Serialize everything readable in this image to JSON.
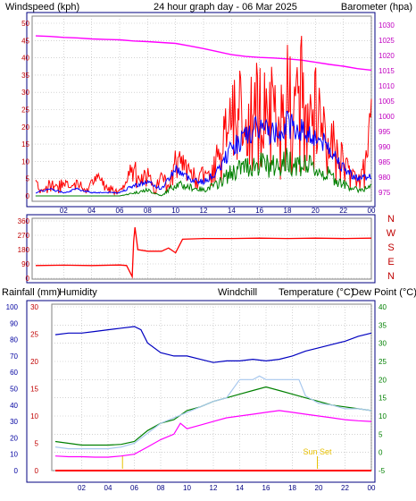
{
  "colors": {
    "wind_speed": "#ff0000",
    "wind_gust": "#ff0000",
    "wind_avg": "#0000ff",
    "wind_lull": "#008000",
    "barometer": "#ff00ff",
    "direction": "#ff0000",
    "rainfall": "#ff0000",
    "humidity": "#0000c0",
    "windchill": "#a8c8ee",
    "temperature": "#008000",
    "dewpoint": "#ff00ff",
    "daylight_marker": "#e8c000",
    "frame_outer": "#000080",
    "frame_inner": "#808080",
    "grid": "#b8b8b8"
  },
  "chart_data": [
    {
      "type": "line",
      "title": "24 hour graph day - 06 Mar 2025",
      "ylabel_left": "Windspeed (kph)",
      "ylabel_right": "Barometer (hpa)",
      "x_ticks": [
        "02",
        "04",
        "06",
        "08",
        "10",
        "12",
        "14",
        "16",
        "18",
        "20",
        "22",
        "00"
      ],
      "xlim": [
        0,
        24
      ],
      "ylim_left": [
        0,
        50
      ],
      "y_ticks_left": [
        "0",
        "5",
        "10",
        "15",
        "20",
        "25",
        "30",
        "35",
        "40",
        "45",
        "50"
      ],
      "ylim_right": [
        972,
        1033
      ],
      "y_ticks_right": [
        "975",
        "980",
        "985",
        "990",
        "995",
        "1000",
        "1005",
        "1010",
        "1015",
        "1020",
        "1025",
        "1030"
      ],
      "grid": true,
      "series": [
        {
          "key": "barometer",
          "axis": "right",
          "x": [
            0,
            1,
            2,
            3,
            4,
            5,
            6,
            7,
            8,
            9,
            10,
            11,
            12,
            13,
            14,
            15,
            16,
            17,
            18,
            19,
            20,
            21,
            22,
            23,
            24
          ],
          "y": [
            1026.5,
            1026.3,
            1026,
            1025.8,
            1025.5,
            1025.3,
            1025.2,
            1024.8,
            1024.6,
            1024.3,
            1024,
            1023.2,
            1022.3,
            1021.3,
            1020.3,
            1019.7,
            1019.4,
            1019.2,
            1018.9,
            1018.5,
            1017.8,
            1017.1,
            1016.5,
            1015.7,
            1015.2
          ]
        },
        {
          "key": "wind_gust",
          "axis": "left",
          "x": [
            0,
            0.5,
            1,
            1.5,
            2,
            2.5,
            3,
            3.5,
            4,
            4.5,
            5,
            5.5,
            6,
            6.5,
            7,
            7.5,
            8,
            8.5,
            9,
            9.5,
            10,
            10.5,
            11,
            11.5,
            12,
            12.5,
            13,
            13.5,
            14,
            14.5,
            15,
            15.5,
            16,
            16.5,
            17,
            17.5,
            18,
            18.5,
            19,
            19.5,
            20,
            20.5,
            21,
            21.5,
            22,
            22.5,
            23,
            23.5,
            24
          ],
          "y": [
            6,
            2,
            5,
            4,
            7,
            3,
            6,
            2,
            5,
            7,
            4,
            3,
            2,
            5,
            14,
            6,
            9,
            3,
            8,
            4,
            16,
            13,
            9,
            8,
            10,
            7,
            17,
            24,
            33,
            38,
            30,
            36,
            42,
            34,
            39,
            31,
            44,
            36,
            47,
            30,
            38,
            26,
            28,
            20,
            14,
            9,
            7,
            12,
            30
          ]
        },
        {
          "key": "wind_avg",
          "axis": "left",
          "x": [
            0,
            1,
            2,
            3,
            4,
            5,
            6,
            7,
            8,
            9,
            10,
            11,
            12,
            13,
            14,
            15,
            16,
            17,
            18,
            19,
            20,
            21,
            22,
            23,
            24
          ],
          "y": [
            1,
            2,
            1,
            2,
            1,
            1,
            1,
            3,
            4,
            2,
            8,
            5,
            4,
            7,
            14,
            17,
            20,
            18,
            21,
            19,
            17,
            14,
            8,
            5,
            6
          ]
        },
        {
          "key": "wind_lull",
          "axis": "left",
          "x": [
            0,
            1,
            2,
            3,
            4,
            5,
            6,
            7,
            8,
            9,
            10,
            11,
            12,
            13,
            14,
            15,
            16,
            17,
            18,
            19,
            20,
            21,
            22,
            23,
            24
          ],
          "y": [
            0,
            0,
            0,
            0,
            0,
            0,
            0,
            1,
            2,
            0,
            4,
            3,
            2,
            4,
            8,
            10,
            11,
            10,
            12,
            11,
            9,
            7,
            4,
            2,
            3
          ]
        }
      ]
    },
    {
      "type": "line",
      "ylabels": [
        "N",
        "W",
        "S",
        "E",
        "N"
      ],
      "y_ticks": [
        "0",
        "90",
        "180",
        "270",
        "360"
      ],
      "ylim": [
        0,
        360
      ],
      "xlim": [
        0,
        24
      ],
      "series": [
        {
          "key": "direction",
          "x": [
            0,
            2,
            4,
            6,
            6.5,
            6.9,
            7.0,
            7.1,
            7.3,
            8,
            9,
            9.5,
            10,
            10.5,
            12,
            14,
            16,
            18,
            20,
            22,
            24
          ],
          "y": [
            80,
            82,
            80,
            83,
            80,
            10,
            230,
            320,
            180,
            170,
            170,
            190,
            160,
            245,
            250,
            250,
            252,
            250,
            252,
            250,
            252
          ]
        }
      ]
    },
    {
      "type": "line",
      "ylabel_rain": "Rainfall (mm)",
      "ylabel_humidity": "Humidity",
      "ylabel_windchill": "Windchill",
      "ylabel_temperature": "Temperature (°C)",
      "ylabel_dewpoint": "Dew Point (°C)",
      "annotation": "Sun Set",
      "sunrise_hour": 5.1,
      "sunset_hour": 19.9,
      "xlim": [
        0,
        24
      ],
      "humidity_ticks": [
        "0",
        "10",
        "20",
        "30",
        "40",
        "50",
        "60",
        "70",
        "80",
        "90",
        "100"
      ],
      "rain_ticks": [
        "0",
        "5",
        "10",
        "15",
        "20",
        "25",
        "30"
      ],
      "rain_lim": [
        0,
        30
      ],
      "temp_ticks": [
        "-5",
        "0",
        "5",
        "10",
        "15",
        "20",
        "25",
        "30",
        "35",
        "40"
      ],
      "temp_lim": [
        -5,
        40
      ],
      "series": [
        {
          "key": "humidity",
          "axis": "humidity",
          "x": [
            0,
            1,
            2,
            3,
            4,
            5,
            6,
            6.5,
            7,
            8,
            9,
            10,
            11,
            12,
            13,
            14,
            15,
            16,
            17,
            18,
            19,
            20,
            21,
            22,
            23,
            24
          ],
          "y": [
            83,
            84,
            84,
            85,
            86,
            87,
            88,
            86,
            78,
            72,
            70,
            70,
            68,
            66,
            67,
            67,
            68,
            67,
            68,
            70,
            73,
            75,
            77,
            79,
            82,
            84
          ]
        },
        {
          "key": "rainfall",
          "axis": "rain",
          "x": [
            0,
            24
          ],
          "y": [
            0,
            0
          ]
        },
        {
          "key": "temperature",
          "axis": "temp",
          "x": [
            0,
            1,
            2,
            3,
            4,
            5,
            6,
            6.5,
            7,
            8,
            9,
            10,
            11,
            12,
            13,
            14,
            15,
            16,
            17,
            18,
            19,
            20,
            21,
            22,
            23,
            24
          ],
          "y": [
            3,
            2.5,
            2,
            2,
            2,
            2.2,
            3,
            4.5,
            6,
            8,
            9,
            11.5,
            12.5,
            14,
            15,
            16,
            17,
            18,
            17,
            16,
            15,
            14,
            13,
            12.5,
            12,
            11.5
          ]
        },
        {
          "key": "windchill",
          "axis": "temp",
          "x": [
            0,
            1,
            2,
            3,
            4,
            5,
            6,
            8,
            10,
            12,
            13,
            14,
            15,
            15.5,
            16,
            17,
            18,
            18.5,
            19,
            20,
            21,
            22,
            23,
            24
          ],
          "y": [
            1.5,
            1,
            1,
            1,
            1,
            1.5,
            2.5,
            8,
            11,
            14,
            15,
            20,
            20,
            21,
            20,
            20,
            20,
            20,
            15.5,
            13.5,
            13,
            12,
            12,
            11.5
          ]
        },
        {
          "key": "dewpoint",
          "axis": "temp",
          "x": [
            0,
            1,
            2,
            3,
            4,
            5,
            6,
            7,
            8,
            9,
            9.5,
            10,
            11,
            12,
            13,
            14,
            15,
            16,
            17,
            18,
            19,
            20,
            21,
            22,
            23,
            24
          ],
          "y": [
            -1,
            -1.2,
            -1.2,
            -1.3,
            -1.3,
            -1,
            -0.5,
            1.5,
            3.5,
            5,
            8,
            6.5,
            7.5,
            8.5,
            9.5,
            10,
            10.5,
            11,
            11.5,
            11,
            10.5,
            10,
            9.5,
            9,
            8.7,
            8.5
          ]
        }
      ]
    }
  ]
}
